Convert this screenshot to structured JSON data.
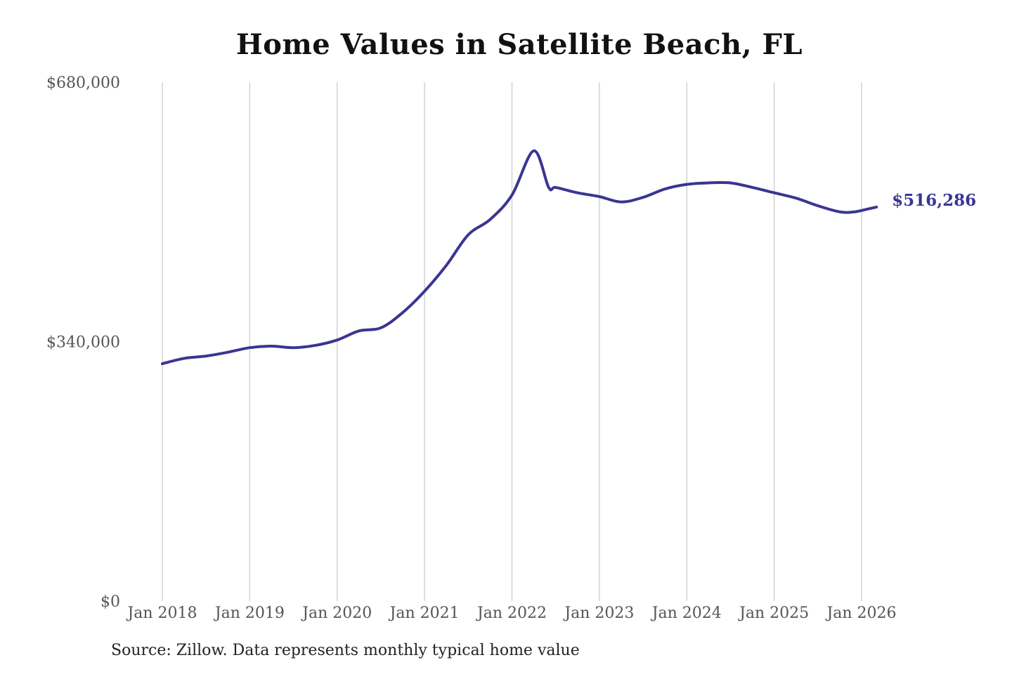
{
  "chart_data": {
    "type": "line",
    "title": "Home Values in Satellite Beach, FL",
    "xlabel": "",
    "ylabel": "",
    "ylim": [
      0,
      680000
    ],
    "y_ticks": [
      {
        "value": 0,
        "label": "$0"
      },
      {
        "value": 340000,
        "label": "$340,000"
      },
      {
        "value": 680000,
        "label": "$680,000"
      }
    ],
    "x_ticks": [
      {
        "value": 2018,
        "label": "Jan 2018"
      },
      {
        "value": 2019,
        "label": "Jan 2019"
      },
      {
        "value": 2020,
        "label": "Jan 2020"
      },
      {
        "value": 2021,
        "label": "Jan 2021"
      },
      {
        "value": 2022,
        "label": "Jan 2022"
      },
      {
        "value": 2023,
        "label": "Jan 2023"
      },
      {
        "value": 2024,
        "label": "Jan 2024"
      },
      {
        "value": 2025,
        "label": "Jan 2025"
      },
      {
        "value": 2026,
        "label": "Jan 2026"
      }
    ],
    "xlim": [
      2018,
      2026.6
    ],
    "grid": "vertical",
    "line_color": "#3a3592",
    "end_label": "$516,286",
    "series": [
      {
        "name": "",
        "x": [
          2018.0,
          2018.25,
          2018.5,
          2018.75,
          2019.0,
          2019.25,
          2019.5,
          2019.75,
          2020.0,
          2020.25,
          2020.5,
          2020.75,
          2021.0,
          2021.25,
          2021.5,
          2021.75,
          2022.0,
          2022.25,
          2022.42,
          2022.5,
          2022.75,
          2023.0,
          2023.25,
          2023.5,
          2023.75,
          2024.0,
          2024.25,
          2024.5,
          2024.75,
          2025.0,
          2025.25,
          2025.5,
          2025.75,
          2025.92,
          2026.08,
          2026.17
        ],
        "y": [
          311000,
          318000,
          321000,
          326000,
          332000,
          334000,
          332000,
          335000,
          342000,
          354000,
          358000,
          378000,
          406000,
          440000,
          480000,
          500000,
          532000,
          590000,
          542000,
          542000,
          535000,
          530000,
          523000,
          529000,
          540000,
          546000,
          548000,
          548000,
          542000,
          535000,
          528000,
          518000,
          510000,
          510000,
          514000,
          516286
        ]
      }
    ],
    "source": "Source: Zillow. Data represents monthly typical home value"
  }
}
